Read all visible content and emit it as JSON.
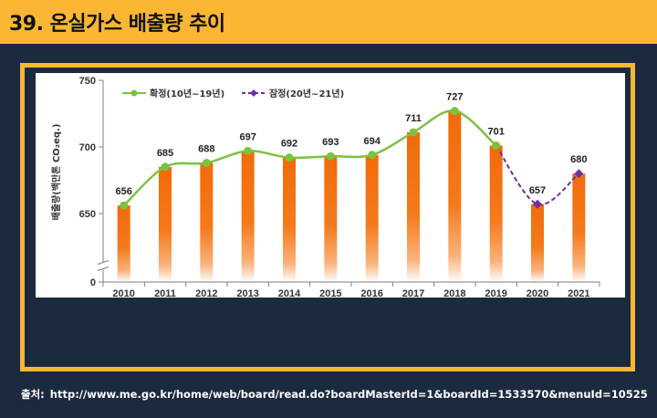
{
  "header": {
    "title": "39. 온실가스 배출량 추이"
  },
  "chart_data": {
    "type": "bar",
    "categories": [
      "2010",
      "2011",
      "2012",
      "2013",
      "2014",
      "2015",
      "2016",
      "2017",
      "2018",
      "2019",
      "2020",
      "2021"
    ],
    "values": [
      656,
      685,
      688,
      697,
      692,
      693,
      694,
      711,
      727,
      701,
      657,
      680
    ],
    "data_labels": [
      "656",
      "685",
      "688",
      "697",
      "692",
      "693",
      "694",
      "711",
      "727",
      "701",
      "657",
      "680"
    ],
    "series": [
      {
        "name": "확정(10년~19년)",
        "x": [
          "2010",
          "2011",
          "2012",
          "2013",
          "2014",
          "2015",
          "2016",
          "2017",
          "2018",
          "2019"
        ],
        "values": [
          656,
          685,
          688,
          697,
          692,
          693,
          694,
          711,
          727,
          701
        ],
        "color": "#7cc242",
        "style": "solid",
        "marker": "circle"
      },
      {
        "name": "잠정(20년~21년)",
        "x": [
          "2019",
          "2020",
          "2021"
        ],
        "values": [
          701,
          657,
          680
        ],
        "color": "#7030a0",
        "style": "dashed",
        "marker": "diamond"
      }
    ],
    "ylabel": "배출량(백만톤 CO₂eq.)",
    "xlabel": "",
    "y_ticks": [
      "750",
      "700",
      "650",
      "0"
    ],
    "y_tick_values": [
      750,
      700,
      650,
      600
    ],
    "axis_break": true,
    "ylim": [
      600,
      750
    ],
    "bar_colors": [
      "#f26a0a",
      "#ffffff"
    ],
    "legend_position": "top-left",
    "grid": false
  },
  "source": {
    "label": "출처:",
    "url": "http://www.me.go.kr/home/web/board/read.do?boardMasterId=1&boardId=1533570&menuId=10525"
  }
}
